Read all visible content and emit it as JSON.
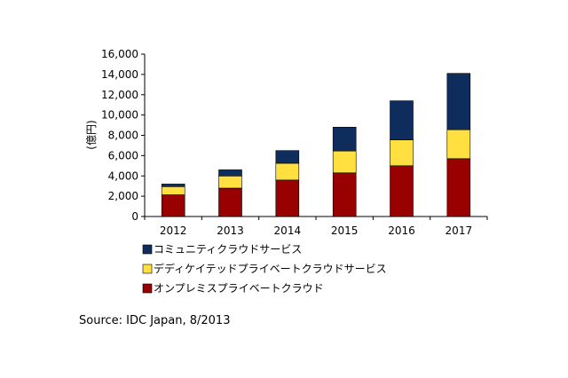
{
  "chart_data": {
    "type": "bar",
    "stacked": true,
    "categories": [
      "2012",
      "2013",
      "2014",
      "2015",
      "2016",
      "2017"
    ],
    "series": [
      {
        "name": "オンプレミスプライベートクラウド",
        "color": "#990000",
        "values": [
          2150,
          2800,
          3600,
          4300,
          5000,
          5700
        ]
      },
      {
        "name": "デディケイテッドプライベートクラウドサービス",
        "color": "#ffe040",
        "values": [
          800,
          1200,
          1650,
          2150,
          2550,
          2850
        ]
      },
      {
        "name": "コミュニティクラウドサービス",
        "color": "#0f2d5c",
        "values": [
          250,
          600,
          1250,
          2350,
          3850,
          5550
        ]
      }
    ],
    "ylabel": "(億円)",
    "ylim": [
      0,
      16000
    ],
    "yticks": [
      "0",
      "2,000",
      "4,000",
      "6,000",
      "8,000",
      "10,000",
      "12,000",
      "14,000",
      "16,000"
    ],
    "grid": false,
    "legend_order": [
      2,
      1,
      0
    ]
  },
  "source": "Source: IDC Japan, 8/2013"
}
